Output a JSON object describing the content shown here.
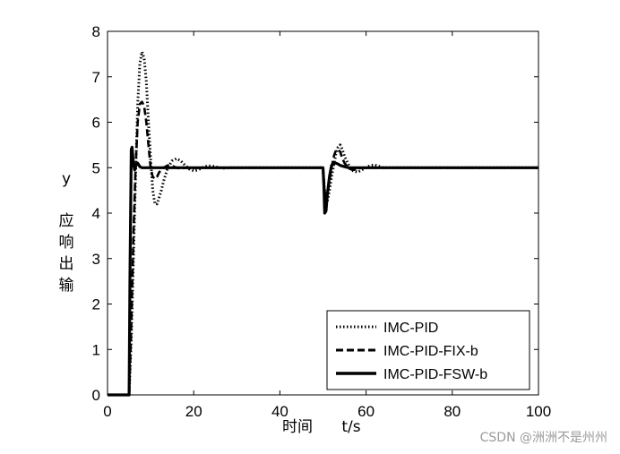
{
  "chart_data": {
    "type": "line",
    "xlabel_cn": "时间",
    "xlabel_unit": "t/s",
    "ylabel_var": "y",
    "ylabel_cn": [
      "应",
      "响",
      "出",
      "输"
    ],
    "xlim": [
      0,
      100
    ],
    "ylim": [
      0,
      8
    ],
    "xticks": [
      0,
      20,
      40,
      60,
      80,
      100
    ],
    "yticks": [
      0,
      1,
      2,
      3,
      4,
      5,
      6,
      7,
      8
    ],
    "grid": false,
    "legend_position": "bottom-right",
    "series": [
      {
        "name": "IMC-PID",
        "style": "dotted",
        "x": [
          0,
          5,
          5.5,
          6,
          6.5,
          7,
          7.5,
          8,
          8.5,
          9,
          9.5,
          10,
          10.5,
          11,
          11.5,
          12,
          12.5,
          13,
          14,
          15,
          16,
          17,
          18,
          19,
          20,
          21,
          22,
          23,
          24,
          25,
          26,
          27,
          28,
          30,
          50,
          50.3,
          50.6,
          51,
          51.5,
          52,
          53,
          53.5,
          54,
          54.5,
          55,
          56,
          57,
          58,
          59,
          60,
          61,
          62,
          63,
          64,
          65,
          100
        ],
        "y": [
          0,
          0,
          1.2,
          3.0,
          4.8,
          6.4,
          7.3,
          7.55,
          7.4,
          6.9,
          6.0,
          5.2,
          4.5,
          4.2,
          4.2,
          4.35,
          4.5,
          4.7,
          5.0,
          5.15,
          5.2,
          5.15,
          5.05,
          4.97,
          4.93,
          4.95,
          5.0,
          5.03,
          5.04,
          5.02,
          5.0,
          4.99,
          5.0,
          5.0,
          5.0,
          4.6,
          4.2,
          4.25,
          4.5,
          4.8,
          5.3,
          5.45,
          5.5,
          5.4,
          5.25,
          5.05,
          4.93,
          4.9,
          4.95,
          5.0,
          5.05,
          5.06,
          5.03,
          5.0,
          5.0,
          5.0
        ]
      },
      {
        "name": "IMC-PID-FIX-b",
        "style": "dashed",
        "x": [
          0,
          5,
          5.5,
          6,
          6.5,
          7,
          7.5,
          8,
          8.5,
          9,
          9.5,
          10,
          10.5,
          11,
          11.5,
          12,
          13,
          14,
          15,
          16,
          17,
          18,
          20,
          50,
          50.3,
          50.6,
          51,
          51.5,
          52,
          52.5,
          53,
          53.5,
          54,
          54.5,
          55,
          56,
          57,
          58,
          59,
          60,
          100
        ],
        "y": [
          0,
          0,
          1.5,
          3.5,
          5.0,
          6.0,
          6.4,
          6.45,
          6.35,
          6.0,
          5.5,
          5.0,
          4.8,
          4.75,
          4.8,
          4.9,
          5.0,
          5.05,
          5.04,
          5.0,
          4.98,
          5.0,
          5.0,
          5.0,
          4.6,
          4.3,
          4.4,
          4.7,
          5.0,
          5.25,
          5.38,
          5.4,
          5.35,
          5.2,
          5.1,
          4.98,
          4.95,
          4.97,
          5.0,
          5.0,
          5.0
        ]
      },
      {
        "name": "IMC-PID-FSW-b",
        "style": "solid",
        "x": [
          0,
          5,
          5.2,
          5.5,
          5.7,
          6,
          6.3,
          6.6,
          7,
          7.5,
          8,
          9,
          10,
          12,
          20,
          50,
          50.2,
          50.4,
          50.7,
          51,
          51.5,
          52,
          52.5,
          53,
          53.5,
          54,
          55,
          56,
          57,
          60,
          100
        ],
        "y": [
          0,
          0,
          2.5,
          5.4,
          5.45,
          5.1,
          4.95,
          5.05,
          5.1,
          5.02,
          5.0,
          5.0,
          5.0,
          5.0,
          5.0,
          5.0,
          4.6,
          4.0,
          4.05,
          4.4,
          4.8,
          5.05,
          5.1,
          5.1,
          5.08,
          5.05,
          5.02,
          5.0,
          5.0,
          5.0,
          5.0
        ]
      }
    ]
  },
  "watermark": "CSDN @洲洲不是州州"
}
